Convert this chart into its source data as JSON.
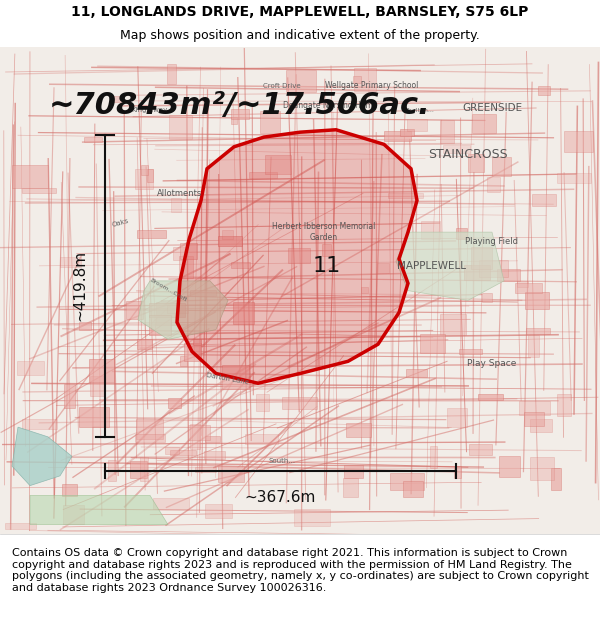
{
  "title_line1": "11, LONGLANDS DRIVE, MAPPLEWELL, BARNSLEY, S75 6LP",
  "title_line2": "Map shows position and indicative extent of the property.",
  "area_label": "~70843m²/~17.506ac.",
  "label_11": "11",
  "vertical_label": "~419.8m",
  "horizontal_label": "~367.6m",
  "footer_text": "Contains OS data © Crown copyright and database right 2021. This information is subject to Crown copyright and database rights 2023 and is reproduced with the permission of HM Land Registry. The polygons (including the associated geometry, namely x, y co-ordinates) are subject to Crown copyright and database rights 2023 Ordnance Survey 100026316.",
  "title_fontsize": 10,
  "subtitle_fontsize": 9,
  "area_fontsize": 22,
  "label_fontsize": 16,
  "measurement_fontsize": 11,
  "footer_fontsize": 8,
  "map_bg_color": "#f5f0eb",
  "map_street_color": "#e8a09a",
  "boundary_color": "#cc0000",
  "boundary_linewidth": 2.5,
  "measurement_line_color": "#111111",
  "header_bg": "#ffffff",
  "footer_bg": "#ffffff",
  "fig_width": 6.0,
  "fig_height": 6.25
}
